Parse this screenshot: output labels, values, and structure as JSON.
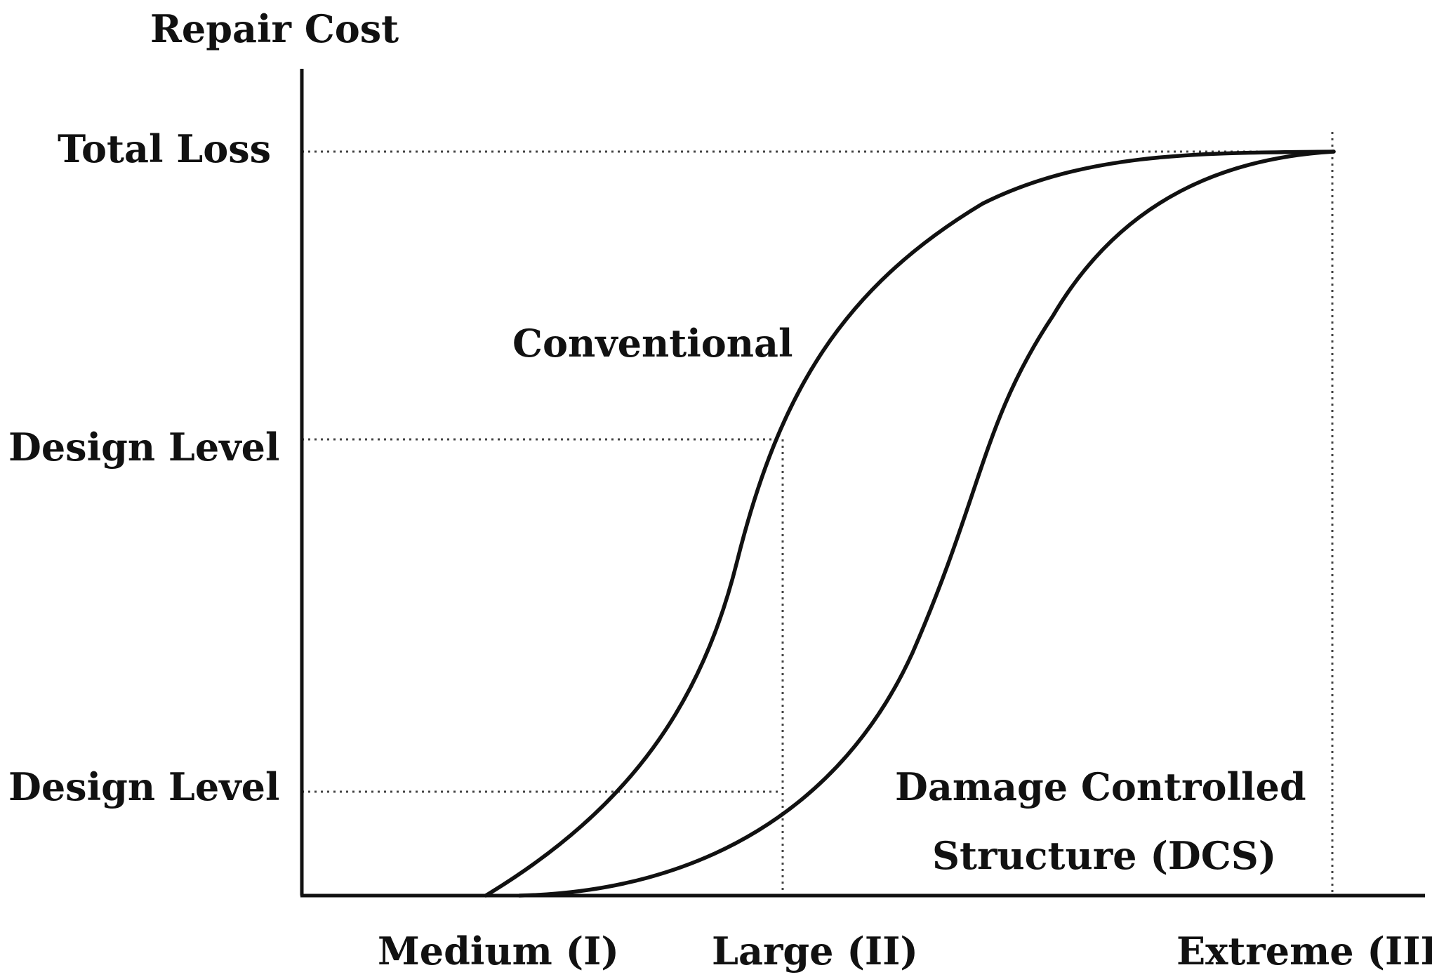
{
  "diagram": {
    "y_axis_title": "Repair Cost",
    "y_levels": [
      {
        "label": "Total Loss"
      },
      {
        "label": "Design Level"
      },
      {
        "label": "Design Level"
      }
    ],
    "x_levels": [
      {
        "label": "Medium (I)"
      },
      {
        "label": "Large (II)"
      },
      {
        "label": "Extreme (III)"
      }
    ],
    "curves": [
      {
        "label_lines": [
          "Conventional"
        ]
      },
      {
        "label_lines": [
          "Damage Controlled",
          "Structure (DCS)"
        ]
      }
    ]
  }
}
